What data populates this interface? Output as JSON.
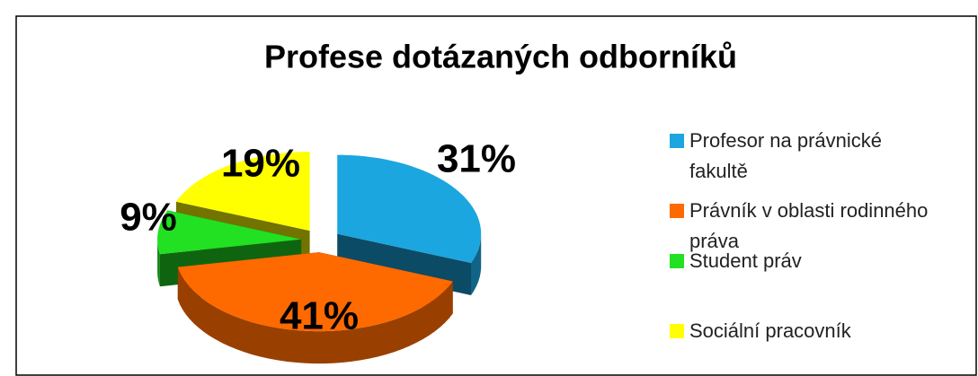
{
  "chart_data": {
    "type": "pie",
    "title": "Profese dotázaných odborníků",
    "categories": [
      "Profesor na právnické fakultě",
      "Právník v oblasti rodinného práva",
      "Student práv",
      "Sociální pracovník"
    ],
    "values": [
      31,
      41,
      9,
      19
    ],
    "value_labels": [
      "31%",
      "41%",
      "9%",
      "19%"
    ],
    "colors": [
      "#1ba6e0",
      "#ff6a00",
      "#22e022",
      "#ffff00"
    ]
  }
}
